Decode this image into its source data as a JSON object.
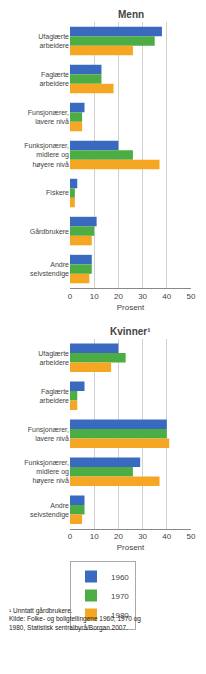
{
  "chart_data": [
    {
      "type": "bar",
      "orientation": "horizontal",
      "title": "Menn",
      "categories": [
        "Ufaglærte\narbeidere",
        "Faglærte\narbeidere",
        "Funsjonærer,\nlavere nivå",
        "Funksjonærer,\nmidlere og\nhøyere nivå",
        "Fiskere",
        "Gårdbrukere",
        "Andre\nselvstendige"
      ],
      "series": [
        {
          "name": "1960",
          "color": "#3a6abf",
          "values": [
            38,
            13,
            6,
            20,
            3,
            11,
            9
          ]
        },
        {
          "name": "1970",
          "color": "#4cad45",
          "values": [
            35,
            13,
            5,
            26,
            2,
            10,
            9
          ]
        },
        {
          "name": "1980",
          "color": "#f5a623",
          "values": [
            26,
            18,
            5,
            37,
            2,
            9,
            8
          ]
        }
      ],
      "xlabel": "Prosent",
      "xlim": [
        0,
        50
      ],
      "xticks": [
        0,
        10,
        20,
        30,
        40,
        50
      ],
      "grid": true
    },
    {
      "type": "bar",
      "orientation": "horizontal",
      "title": "Kvinner¹",
      "categories": [
        "Ufaglærte\narbeidere",
        "Faglærte\narbeidere",
        "Funsjonærer,\nlavere nivå",
        "Funksjonærer,\nmidlere og\nhøyere nivå",
        "Andre\nselvstendige"
      ],
      "series": [
        {
          "name": "1960",
          "color": "#3a6abf",
          "values": [
            20,
            6,
            40,
            29,
            6
          ]
        },
        {
          "name": "1970",
          "color": "#4cad45",
          "values": [
            23,
            3,
            40,
            26,
            6
          ]
        },
        {
          "name": "1980",
          "color": "#f5a623",
          "values": [
            17,
            3,
            41,
            37,
            5
          ]
        }
      ],
      "xlabel": "Prosent",
      "xlim": [
        0,
        50
      ],
      "xticks": [
        0,
        10,
        20,
        30,
        40,
        50
      ],
      "grid": true,
      "legend": "bottom",
      "annotations": [
        "¹ Unntatt gårdbrukere.\nKilde: Folke- og boligtellingene 1960, 1970 og\n1980, Statistisk sentralbyrå/Borgan 2007."
      ]
    }
  ]
}
